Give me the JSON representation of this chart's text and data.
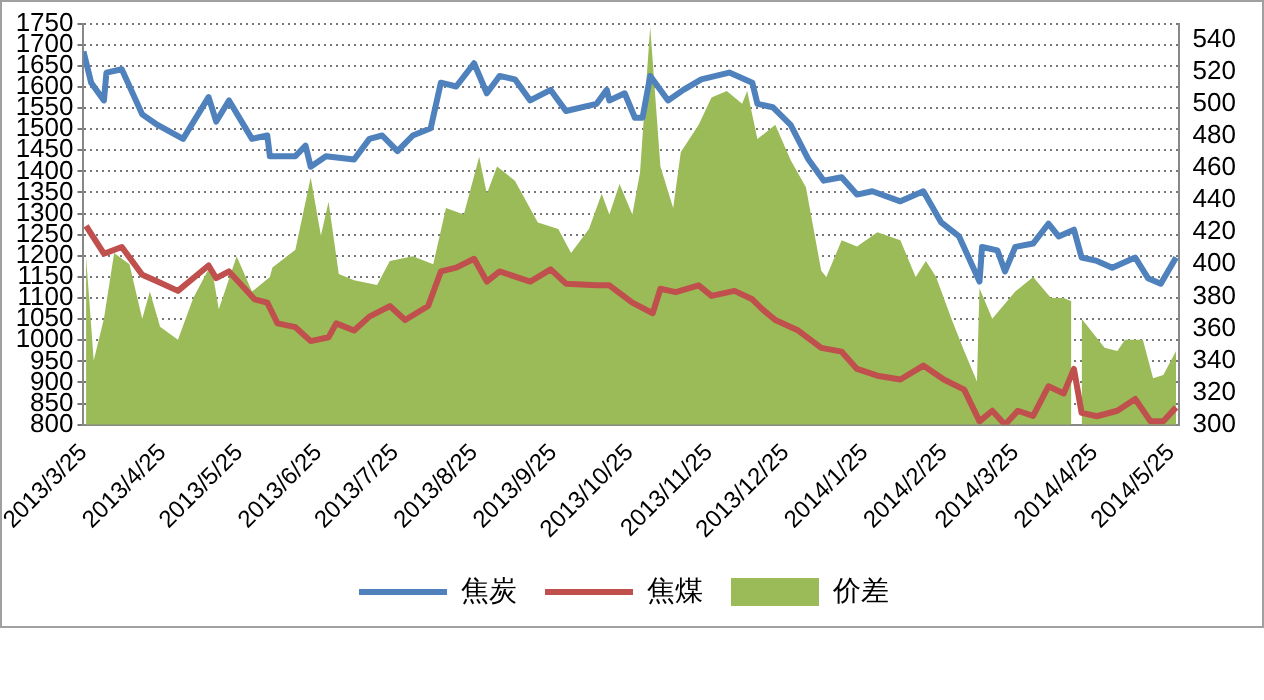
{
  "chart_data": {
    "type": "line",
    "legend": "bottom",
    "grid": "y",
    "marker": "none",
    "xlim": [
      "2013-03-25",
      "2014-05-28"
    ],
    "xticks": [
      {
        "value": "2013-03-25",
        "label": "2013/3/25"
      },
      {
        "value": "2013-04-25",
        "label": "2013/4/25"
      },
      {
        "value": "2013-05-25",
        "label": "2013/5/25"
      },
      {
        "value": "2013-06-25",
        "label": "2013/6/25"
      },
      {
        "value": "2013-07-25",
        "label": "2013/7/25"
      },
      {
        "value": "2013-08-25",
        "label": "2013/8/25"
      },
      {
        "value": "2013-09-25",
        "label": "2013/9/25"
      },
      {
        "value": "2013-10-25",
        "label": "2013/10/25"
      },
      {
        "value": "2013-11-25",
        "label": "2013/11/25"
      },
      {
        "value": "2013-12-25",
        "label": "2013/12/25"
      },
      {
        "value": "2014-01-25",
        "label": "2014/1/25"
      },
      {
        "value": "2014-02-25",
        "label": "2014/2/25"
      },
      {
        "value": "2014-03-25",
        "label": "2014/3/25"
      },
      {
        "value": "2014-04-25",
        "label": "2014/4/25"
      },
      {
        "value": "2014-05-25",
        "label": "2014/5/25"
      }
    ],
    "ylim": [
      800,
      1750
    ],
    "yticks": [
      800,
      850,
      900,
      950,
      1000,
      1050,
      1100,
      1150,
      1200,
      1250,
      1300,
      1350,
      1400,
      1450,
      1500,
      1550,
      1600,
      1650,
      1700,
      1750
    ],
    "y2lim": [
      300,
      550
    ],
    "y2ticks": [
      300,
      320,
      340,
      360,
      380,
      400,
      420,
      440,
      460,
      480,
      500,
      520,
      540
    ],
    "series": [
      {
        "name": "价差",
        "type": "area",
        "axis": "y2",
        "color": "#9bbb59",
        "x": [
          "2013-03-26",
          "2013-03-29",
          "2013-04-02",
          "2013-04-06",
          "2013-04-12",
          "2013-04-17",
          "2013-04-20",
          "2013-04-24",
          "2013-05-01",
          "2013-05-07",
          "2013-05-14",
          "2013-05-17",
          "2013-05-24",
          "2013-05-30",
          "2013-06-06",
          "2013-06-07",
          "2013-06-16",
          "2013-06-22",
          "2013-06-26",
          "2013-06-29",
          "2013-07-03",
          "2013-07-09",
          "2013-07-18",
          "2013-07-23",
          "2013-08-01",
          "2013-08-09",
          "2013-08-14",
          "2013-08-21",
          "2013-08-27",
          "2013-08-30",
          "2013-09-03",
          "2013-09-10",
          "2013-09-19",
          "2013-09-27",
          "2013-10-02",
          "2013-10-09",
          "2013-10-14",
          "2013-10-17",
          "2013-10-21",
          "2013-10-26",
          "2013-10-29",
          "2013-11-02",
          "2013-11-06",
          "2013-11-11",
          "2013-11-14",
          "2013-11-21",
          "2013-11-26",
          "2013-12-02",
          "2013-12-08",
          "2013-12-10",
          "2013-12-14",
          "2013-12-21",
          "2013-12-27",
          "2014-01-02",
          "2014-01-08",
          "2014-01-10",
          "2014-01-16",
          "2014-01-22",
          "2014-01-30",
          "2014-02-08",
          "2014-02-14",
          "2014-02-18",
          "2014-02-22",
          "2014-02-28",
          "2014-03-05",
          "2014-03-10",
          "2014-03-11",
          "2014-03-16",
          "2014-03-25",
          "2014-04-01",
          "2014-04-08",
          "2014-04-13",
          "2014-04-16",
          "2014-04-18",
          "2014-04-20",
          "2014-04-29",
          "2014-05-04",
          "2014-05-07",
          "2014-05-14",
          "2014-05-18",
          "2014-05-22",
          "2014-05-27"
        ],
        "values": [
          405,
          340,
          366,
          407,
          400,
          366,
          383,
          361,
          353,
          379,
          400,
          372,
          405,
          383,
          392,
          398,
          409,
          454,
          418,
          439,
          394,
          390,
          387,
          402,
          405,
          400,
          435,
          431,
          467,
          444,
          461,
          452,
          426,
          422,
          407,
          422,
          444,
          431,
          450,
          431,
          457,
          548,
          461,
          435,
          470,
          487,
          504,
          508,
          500,
          508,
          478,
          487,
          465,
          448,
          396,
          392,
          415,
          411,
          420,
          415,
          392,
          402,
          392,
          366,
          346,
          327,
          385,
          366,
          383,
          392,
          379,
          379,
          377,
          null,
          366,
          348,
          346,
          353,
          353,
          329,
          331,
          346
        ]
      },
      {
        "name": "焦炭",
        "color": "#4f81bd",
        "x": [
          "2013-03-25",
          "2013-03-28",
          "2013-04-02",
          "2013-04-03",
          "2013-04-09",
          "2013-04-17",
          "2013-04-23",
          "2013-05-03",
          "2013-05-13",
          "2013-05-16",
          "2013-05-21",
          "2013-05-30",
          "2013-06-05",
          "2013-06-06",
          "2013-06-16",
          "2013-06-20",
          "2013-06-22",
          "2013-06-28",
          "2013-07-09",
          "2013-07-15",
          "2013-07-20",
          "2013-07-26",
          "2013-08-01",
          "2013-08-08",
          "2013-08-12",
          "2013-08-18",
          "2013-08-25",
          "2013-08-30",
          "2013-09-04",
          "2013-09-10",
          "2013-09-16",
          "2013-09-24",
          "2013-09-30",
          "2013-10-12",
          "2013-10-16",
          "2013-10-17",
          "2013-10-23",
          "2013-10-27",
          "2013-10-30",
          "2013-11-02",
          "2013-11-09",
          "2013-11-15",
          "2013-11-22",
          "2013-12-03",
          "2013-12-12",
          "2013-12-14",
          "2013-12-20",
          "2013-12-27",
          "2014-01-03",
          "2014-01-09",
          "2014-01-16",
          "2014-01-22",
          "2014-01-28",
          "2014-02-08",
          "2014-02-17",
          "2014-02-24",
          "2014-03-03",
          "2014-03-11",
          "2014-03-12",
          "2014-03-18",
          "2014-03-21",
          "2014-03-25",
          "2014-04-01",
          "2014-04-07",
          "2014-04-11",
          "2014-04-17",
          "2014-04-20",
          "2014-04-26",
          "2014-05-02",
          "2014-05-11",
          "2014-05-16",
          "2014-05-21",
          "2014-05-27"
        ],
        "values": [
          1684,
          1610,
          1568,
          1634,
          1642,
          1535,
          1510,
          1477,
          1576,
          1518,
          1568,
          1477,
          1485,
          1436,
          1436,
          1461,
          1411,
          1436,
          1428,
          1477,
          1485,
          1448,
          1485,
          1502,
          1610,
          1601,
          1656,
          1585,
          1626,
          1618,
          1568,
          1593,
          1543,
          1560,
          1593,
          1568,
          1585,
          1527,
          1527,
          1626,
          1568,
          1593,
          1618,
          1634,
          1610,
          1560,
          1552,
          1510,
          1428,
          1378,
          1386,
          1345,
          1353,
          1329,
          1353,
          1279,
          1246,
          1139,
          1221,
          1213,
          1163,
          1221,
          1229,
          1276,
          1246,
          1262,
          1196,
          1188,
          1172,
          1196,
          1147,
          1134,
          1196
        ]
      },
      {
        "name": "焦煤",
        "color": "#c0504d",
        "x": [
          "2013-03-26",
          "2013-04-02",
          "2013-04-09",
          "2013-04-17",
          "2013-04-23",
          "2013-05-01",
          "2013-05-13",
          "2013-05-16",
          "2013-05-21",
          "2013-05-31",
          "2013-06-05",
          "2013-06-09",
          "2013-06-16",
          "2013-06-22",
          "2013-06-29",
          "2013-07-02",
          "2013-07-09",
          "2013-07-15",
          "2013-07-23",
          "2013-07-29",
          "2013-08-07",
          "2013-08-12",
          "2013-08-18",
          "2013-08-25",
          "2013-08-30",
          "2013-09-04",
          "2013-09-16",
          "2013-09-24",
          "2013-09-30",
          "2013-10-12",
          "2013-10-17",
          "2013-10-26",
          "2013-11-03",
          "2013-11-06",
          "2013-11-12",
          "2013-11-21",
          "2013-11-26",
          "2013-12-05",
          "2013-12-12",
          "2013-12-16",
          "2013-12-21",
          "2013-12-30",
          "2014-01-08",
          "2014-01-16",
          "2014-01-22",
          "2014-01-30",
          "2014-02-08",
          "2014-02-17",
          "2014-02-25",
          "2014-03-05",
          "2014-03-11",
          "2014-03-16",
          "2014-03-21",
          "2014-03-26",
          "2014-04-01",
          "2014-04-07",
          "2014-04-13",
          "2014-04-17",
          "2014-04-20",
          "2014-04-26",
          "2014-05-04",
          "2014-05-11",
          "2014-05-17",
          "2014-05-22",
          "2014-05-27"
        ],
        "values": [
          1271,
          1205,
          1221,
          1155,
          1139,
          1117,
          1177,
          1147,
          1163,
          1097,
          1089,
          1040,
          1031,
          998,
          1007,
          1040,
          1023,
          1056,
          1081,
          1048,
          1081,
          1163,
          1172,
          1193,
          1139,
          1163,
          1139,
          1168,
          1134,
          1130,
          1130,
          1089,
          1064,
          1122,
          1114,
          1130,
          1105,
          1117,
          1097,
          1073,
          1048,
          1023,
          982,
          973,
          932,
          916,
          907,
          940,
          907,
          883,
          808,
          833,
          800,
          833,
          821,
          891,
          874,
          932,
          828,
          820,
          833,
          861,
          808,
          808,
          841
        ]
      }
    ]
  }
}
